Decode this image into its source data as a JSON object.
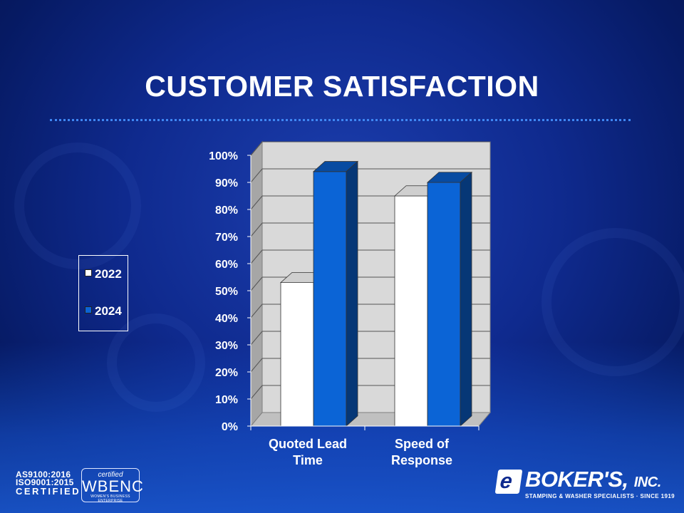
{
  "slide": {
    "title": "CUSTOMER SATISFACTION"
  },
  "colors": {
    "series_2022": "#ffffff",
    "series_2024": "#0b64d6",
    "plot_background": "#d9d9d9",
    "text": "#ffffff"
  },
  "chart_data": {
    "type": "bar",
    "title": "",
    "xlabel": "",
    "ylabel": "",
    "ylim": [
      0,
      100
    ],
    "y_ticks": [
      "0%",
      "10%",
      "20%",
      "30%",
      "40%",
      "50%",
      "60%",
      "70%",
      "80%",
      "90%",
      "100%"
    ],
    "categories": [
      {
        "line1": "Quoted Lead",
        "line2": "Time"
      },
      {
        "line1": "Speed of",
        "line2": "Response"
      }
    ],
    "series": [
      {
        "name": "2022",
        "values": [
          53,
          85
        ]
      },
      {
        "name": "2024",
        "values": [
          94,
          90
        ]
      }
    ],
    "legend_position": "left",
    "grid": true
  },
  "footer": {
    "cert_line1": "AS9100:2016",
    "cert_line2": "ISO9001:2015",
    "cert_line3": "CERTIFIED",
    "wbenc_top": "certified",
    "wbenc_name": "WBENC",
    "wbenc_sub": "WOMEN'S BUSINESS ENTERPRISE",
    "company_name": "BOKER'S,",
    "company_suffix": "INC.",
    "company_tagline": "STAMPING & WASHER SPECIALISTS · SINCE 1919"
  }
}
